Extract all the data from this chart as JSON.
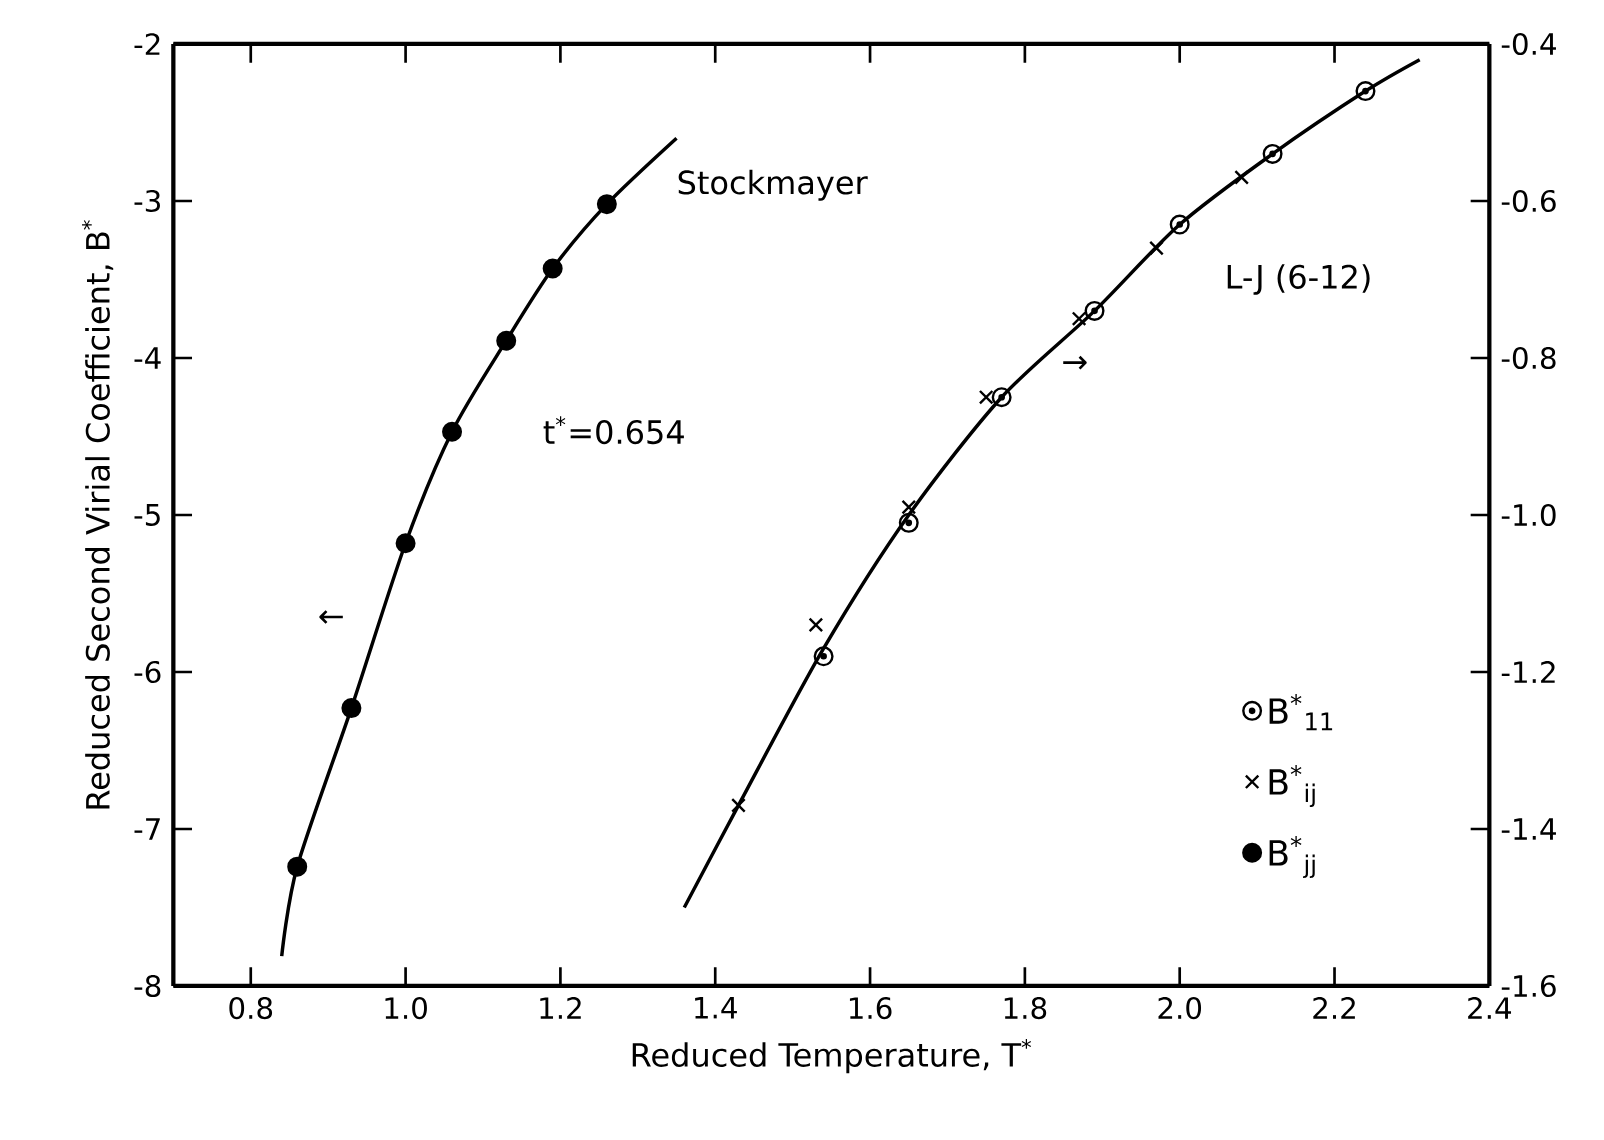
{
  "chart_data": {
    "type": "scatter",
    "xlabel": "Reduced Temperature, T$^{*}$",
    "ylabel": "Reduced Second Virial Coefficient, B$^{*}$",
    "xlim": [
      0.7,
      2.4
    ],
    "xticks": [
      {
        "value": 0.8,
        "label": "0.8"
      },
      {
        "value": 1.0,
        "label": "1.0"
      },
      {
        "value": 1.2,
        "label": "1.2"
      },
      {
        "value": 1.4,
        "label": "1.4"
      },
      {
        "value": 1.6,
        "label": "1.6"
      },
      {
        "value": 1.8,
        "label": "1.8"
      },
      {
        "value": 2.0,
        "label": "2.0"
      },
      {
        "value": 2.2,
        "label": "2.2"
      },
      {
        "value": 2.4,
        "label": "2.4"
      }
    ],
    "ylim": [
      -8,
      -2
    ],
    "yticks": [
      -8,
      -7,
      -6,
      -5,
      -4,
      -3,
      -2
    ],
    "y2lim": [
      -1.6,
      -0.4
    ],
    "y2ticks": [
      {
        "value": -1.6,
        "label": "-1.6"
      },
      {
        "value": -1.4,
        "label": "-1.4"
      },
      {
        "value": -1.2,
        "label": "-1.2"
      },
      {
        "value": -1.0,
        "label": "-1.0"
      },
      {
        "value": -0.8,
        "label": "-0.8"
      },
      {
        "value": -0.6,
        "label": "-0.6"
      },
      {
        "value": -0.4,
        "label": "-0.4"
      }
    ],
    "grid": false,
    "legend": "bottom right",
    "series": [
      {
        "type": "line",
        "color": "#000000",
        "line_style": "solid",
        "x": [
          0.84,
          0.86,
          0.93,
          1.0,
          1.06,
          1.13,
          1.19,
          1.26,
          1.35
        ],
        "values": [
          -7.81,
          -7.24,
          -6.23,
          -5.18,
          -4.47,
          -3.89,
          -3.43,
          -3.02,
          -2.6
        ]
      },
      {
        "type": "line",
        "axis": "y2",
        "color": "#000000",
        "line_style": "solid",
        "x": [
          1.36,
          1.43,
          1.54,
          1.65,
          1.77,
          1.89,
          2.0,
          2.12,
          2.24,
          2.31
        ],
        "values": [
          -1.5,
          -1.37,
          -1.17,
          -1.0,
          -0.85,
          -0.74,
          -0.63,
          -0.54,
          -0.46,
          -0.42
        ]
      },
      {
        "name": "B$^{*}$$_{11}$",
        "axis": "y2",
        "color": "#000000",
        "x": [
          1.54,
          1.65,
          1.77,
          1.89,
          2.0,
          2.12,
          2.24
        ],
        "values": [
          -1.18,
          -1.01,
          -0.85,
          -0.74,
          -0.63,
          -0.54,
          -0.46
        ]
      },
      {
        "name": "B$^{*}$$_{ij}$",
        "axis": "y2",
        "color": "#000000",
        "marker": "cross",
        "x": [
          1.43,
          1.53,
          1.65,
          1.75,
          1.87,
          1.97,
          2.08
        ],
        "values": [
          -1.37,
          -1.14,
          -0.99,
          -0.85,
          -0.75,
          -0.66,
          -0.57
        ]
      },
      {
        "name": "B$^{*}$$_{jj}$",
        "color": "#000000",
        "marker": "circle",
        "x": [
          0.86,
          0.93,
          1.0,
          1.06,
          1.13,
          1.19,
          1.26
        ],
        "values": [
          -7.24,
          -6.23,
          -5.18,
          -4.47,
          -3.89,
          -3.43,
          -3.02
        ]
      }
    ],
    "annotations": [
      "Stockmayer",
      "t$^{*}$=0.654",
      "L-J (6-12)",
      "←",
      "→"
    ]
  }
}
